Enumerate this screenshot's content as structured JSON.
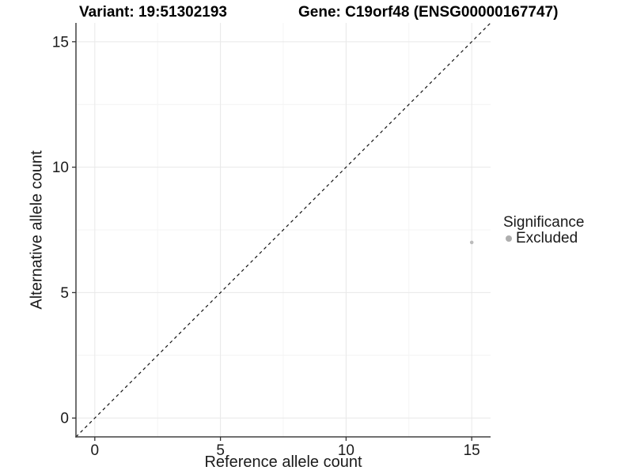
{
  "figure": {
    "title_left": "Variant: 19:51302193",
    "title_right": "Gene: C19orf48 (ENSG00000167747)"
  },
  "chart_data": {
    "type": "scatter",
    "title": "Variant: 19:51302193   Gene: C19orf48 (ENSG00000167747)",
    "title_left": "Variant: 19:51302193",
    "title_right": "Gene: C19orf48 (ENSG00000167747)",
    "xlabel": "Reference allele count",
    "ylabel": "Alternative allele count",
    "xlim": [
      -0.75,
      15.75
    ],
    "ylim": [
      -0.75,
      15.75
    ],
    "x_ticks": [
      0,
      5,
      10,
      15
    ],
    "y_ticks": [
      0,
      5,
      10,
      15
    ],
    "x_minor_ticks": [
      2.5,
      7.5,
      12.5
    ],
    "y_minor_ticks": [
      2.5,
      7.5,
      12.5
    ],
    "grid": true,
    "series": [
      {
        "name": "Excluded",
        "color": "#bcbcbc",
        "point_radius": 2.3,
        "points": [
          {
            "x": 15,
            "y": 7
          }
        ]
      }
    ],
    "reference_line": {
      "equation": "y = x",
      "style": "dashed",
      "color": "#111111"
    },
    "legend": {
      "title": "Significance",
      "position": "right",
      "items": [
        {
          "label": "Excluded",
          "color": "#aeaeae"
        }
      ]
    },
    "colors": {
      "background": "#ffffff",
      "grid_major": "#e8e8e8",
      "grid_minor": "#f4f4f4",
      "axis_line": "#404040",
      "tick_mark": "#333333",
      "tick_label": "#1a1a1a"
    }
  }
}
